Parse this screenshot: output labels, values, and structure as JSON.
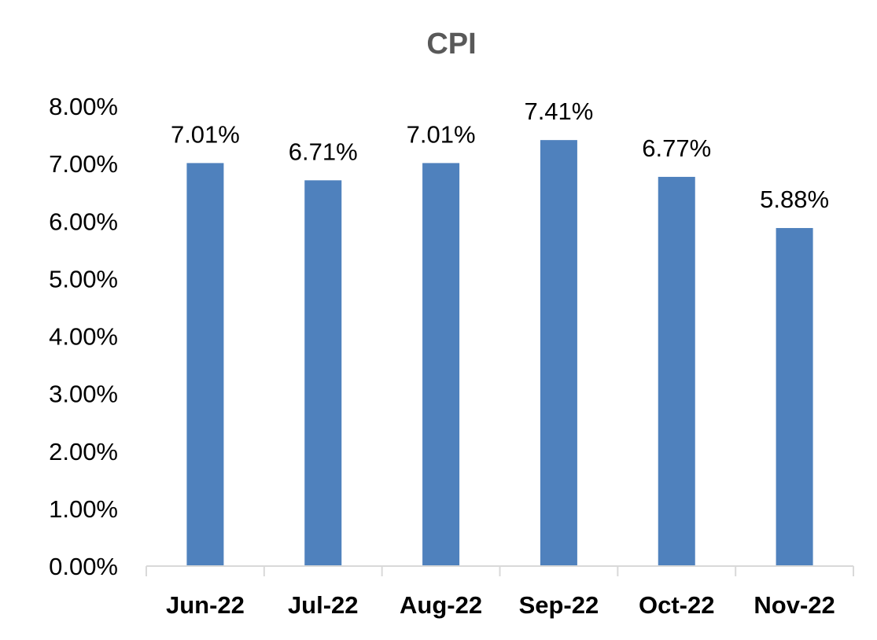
{
  "chart_data": {
    "type": "bar",
    "title": "CPI",
    "categories": [
      "Jun-22",
      "Jul-22",
      "Aug-22",
      "Sep-22",
      "Oct-22",
      "Nov-22"
    ],
    "values": [
      7.01,
      6.71,
      7.01,
      7.41,
      6.77,
      5.88
    ],
    "data_labels": [
      "7.01%",
      "6.71%",
      "7.01%",
      "7.41%",
      "6.77%",
      "5.88%"
    ],
    "yticks": [
      "0.00%",
      "1.00%",
      "2.00%",
      "3.00%",
      "4.00%",
      "5.00%",
      "6.00%",
      "7.00%",
      "8.00%"
    ],
    "ylim": [
      0,
      8
    ],
    "xlabel": "",
    "ylabel": "",
    "grid": false,
    "legend": "none",
    "bar_color": "#4f81bd"
  }
}
